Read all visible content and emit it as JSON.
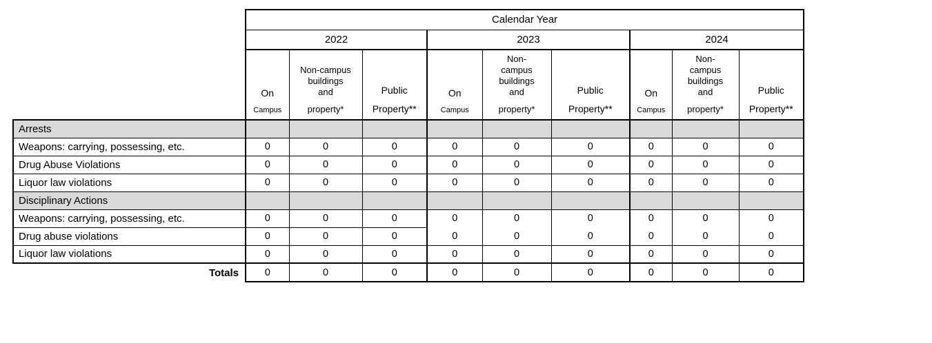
{
  "table": {
    "calendar_year_label": "Calendar Year",
    "years": [
      "2022",
      "2023",
      "2024"
    ],
    "column_headers": [
      {
        "year": "2022",
        "cols": [
          {
            "top": [
              "On"
            ],
            "bottom": "Campus"
          },
          {
            "top": [
              "Non-campus",
              "buildings",
              "and"
            ],
            "bottom": "property*"
          },
          {
            "top": [
              "Public"
            ],
            "bottom": "Property**"
          }
        ]
      },
      {
        "year": "2023",
        "cols": [
          {
            "top": [
              "On"
            ],
            "bottom": "Campus"
          },
          {
            "top": [
              "Non-",
              "campus",
              "buildings",
              "and"
            ],
            "bottom": "property*"
          },
          {
            "top": [
              "Public"
            ],
            "bottom": "Property**"
          }
        ]
      },
      {
        "year": "2024",
        "cols": [
          {
            "top": [
              "On"
            ],
            "bottom": "Campus"
          },
          {
            "top": [
              "Non-",
              "campus",
              "buildings",
              "and"
            ],
            "bottom": "property*"
          },
          {
            "top": [
              "Public"
            ],
            "bottom": "Property**"
          }
        ]
      }
    ],
    "rows": [
      {
        "type": "section",
        "label": "Arrests",
        "values": [
          "",
          "",
          "",
          "",
          "",
          "",
          "",
          "",
          ""
        ]
      },
      {
        "type": "data",
        "label": "Weapons: carrying, possessing, etc.",
        "values": [
          "0",
          "0",
          "0",
          "0",
          "0",
          "0",
          "0",
          "0",
          "0"
        ]
      },
      {
        "type": "data",
        "label": "Drug Abuse Violations",
        "values": [
          "0",
          "0",
          "0",
          "0",
          "0",
          "0",
          "0",
          "0",
          "0"
        ]
      },
      {
        "type": "data",
        "label": "Liquor law violations",
        "values": [
          "0",
          "0",
          "0",
          "0",
          "0",
          "0",
          "0",
          "0",
          "0"
        ]
      },
      {
        "type": "section",
        "label": "Disciplinary Actions",
        "values": [
          "",
          "",
          "",
          "",
          "",
          "",
          "",
          "",
          ""
        ]
      },
      {
        "type": "data",
        "label": "Weapons: carrying, possessing, etc.",
        "values": [
          "0",
          "0",
          "0",
          "0",
          "0",
          "0",
          "0",
          "0",
          "0"
        ]
      },
      {
        "type": "data",
        "label": "Drug abuse violations",
        "values": [
          "0",
          "0",
          "0",
          "0",
          "0",
          "0",
          "0",
          "0",
          "0"
        ]
      },
      {
        "type": "data",
        "label": "Liquor law violations",
        "values": [
          "0",
          "0",
          "0",
          "0",
          "0",
          "0",
          "0",
          "0",
          "0"
        ]
      },
      {
        "type": "totals",
        "label": "Totals",
        "values": [
          "0",
          "0",
          "0",
          "0",
          "0",
          "0",
          "0",
          "0",
          "0"
        ]
      }
    ],
    "colors": {
      "section_row_bg": "#d9d9d9",
      "border": "#000000",
      "background": "#ffffff"
    }
  }
}
